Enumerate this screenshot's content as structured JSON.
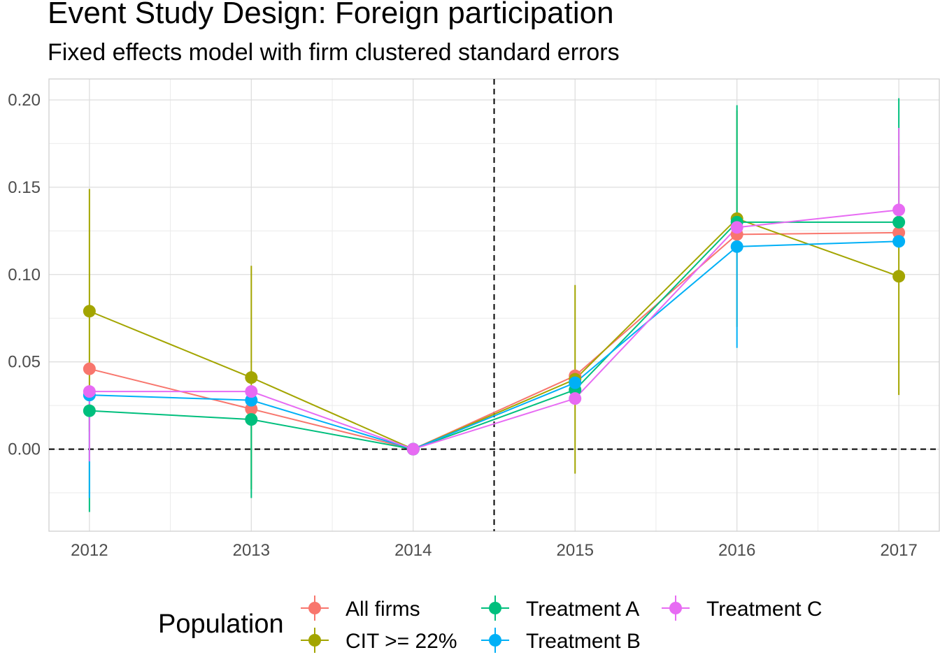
{
  "chart_data": {
    "type": "line",
    "title": "Event Study Design: Foreign participation",
    "subtitle": "Fixed effects model with firm clustered standard errors",
    "xlabel": "",
    "ylabel": "",
    "x": [
      2012,
      2013,
      2014,
      2015,
      2016,
      2017
    ],
    "xlim": [
      2011.75,
      2017.25
    ],
    "ylim": [
      -0.047,
      0.212
    ],
    "yticks": [
      0.0,
      0.05,
      0.1,
      0.15,
      0.2
    ],
    "ytick_labels": [
      "0.00",
      "0.05",
      "0.10",
      "0.15",
      "0.20"
    ],
    "grid": true,
    "reference_lines": {
      "hline": 0.0,
      "vline": 2014.5,
      "style": "dashed"
    },
    "legend": {
      "title": "Population",
      "placement": "bottom"
    },
    "series": [
      {
        "name": "All firms",
        "color": "#F8766D",
        "values": [
          0.046,
          0.023,
          0.0,
          0.042,
          0.123,
          0.124
        ],
        "lower": [
          null,
          null,
          0.0,
          null,
          null,
          null
        ],
        "upper": [
          null,
          null,
          0.0,
          null,
          null,
          null
        ]
      },
      {
        "name": "CIT >= 22%",
        "color": "#A3A500",
        "values": [
          0.079,
          0.041,
          0.0,
          0.04,
          0.132,
          0.099
        ],
        "lower": [
          0.01,
          -0.023,
          0.0,
          -0.014,
          0.07,
          0.031
        ],
        "upper": [
          0.149,
          0.105,
          0.0,
          0.094,
          0.194,
          0.168
        ]
      },
      {
        "name": "Treatment A",
        "color": "#00BF7D",
        "values": [
          0.022,
          0.017,
          0.0,
          0.034,
          0.13,
          0.13
        ],
        "lower": [
          -0.036,
          -0.028,
          0.0,
          null,
          null,
          null
        ],
        "upper": [
          null,
          null,
          0.0,
          null,
          0.197,
          0.201
        ]
      },
      {
        "name": "Treatment B",
        "color": "#00B0F6",
        "values": [
          0.031,
          0.028,
          0.0,
          0.038,
          0.116,
          0.119
        ],
        "lower": [
          -0.028,
          null,
          0.0,
          null,
          0.058,
          null
        ],
        "upper": [
          null,
          null,
          0.0,
          null,
          null,
          null
        ]
      },
      {
        "name": "Treatment C",
        "color": "#E76BF3",
        "values": [
          0.033,
          0.033,
          0.0,
          0.029,
          0.127,
          0.137
        ],
        "lower": [
          -0.007,
          null,
          0.0,
          null,
          null,
          null
        ],
        "upper": [
          null,
          null,
          0.0,
          null,
          null,
          0.184
        ]
      }
    ]
  }
}
